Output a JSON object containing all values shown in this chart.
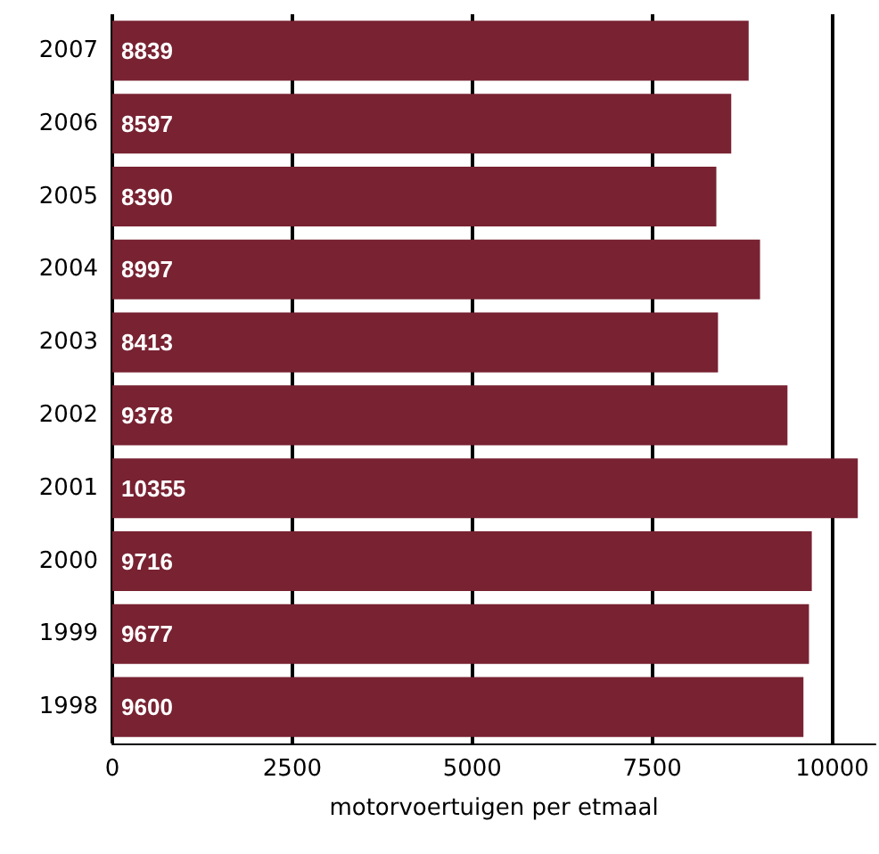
{
  "chart_data": {
    "type": "bar",
    "orientation": "horizontal",
    "xlabel": "motorvoertuigen per etmaal",
    "categories": [
      "2007",
      "2006",
      "2005",
      "2004",
      "2003",
      "2002",
      "2001",
      "2000",
      "1999",
      "1998"
    ],
    "values": [
      8839,
      8597,
      8390,
      8997,
      8413,
      9378,
      10355,
      9716,
      9677,
      9600
    ],
    "color": "#782232",
    "data_labels": true,
    "grid": "x",
    "xlim": [
      0,
      10600
    ],
    "xticks": [
      0,
      2500,
      5000,
      7500,
      10000
    ]
  }
}
